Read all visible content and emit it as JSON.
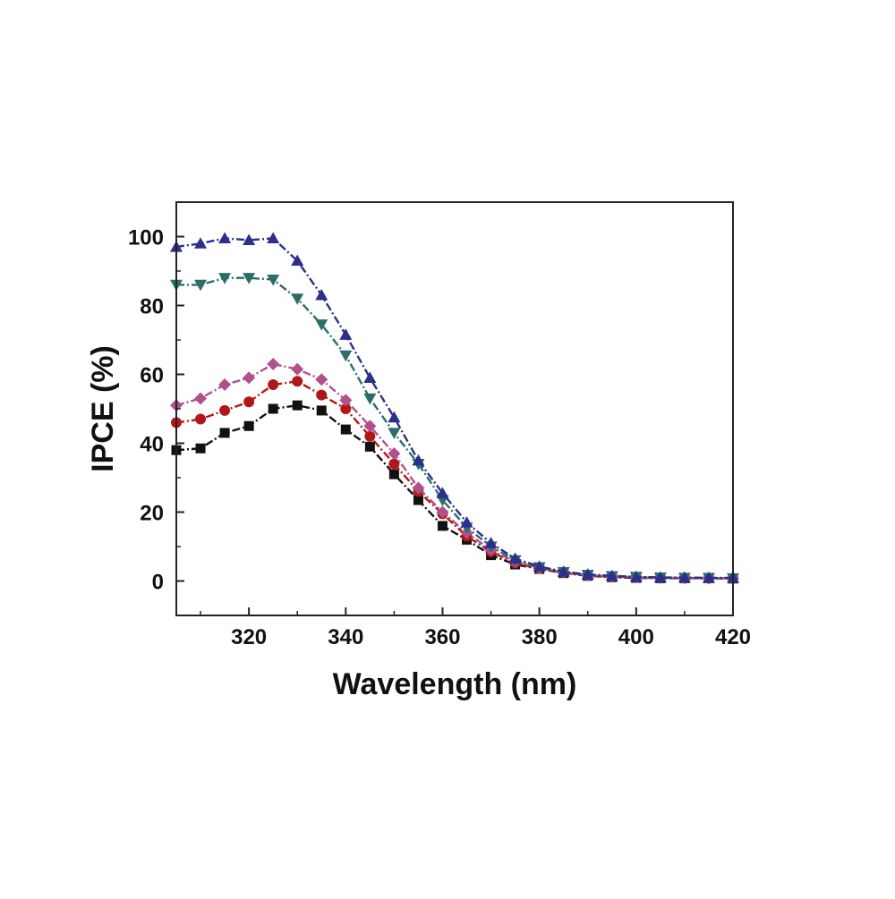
{
  "chart_data": {
    "type": "line",
    "title": "",
    "xlabel": "Wavelength (nm)",
    "ylabel": "IPCE (%)",
    "xlim": [
      305,
      420
    ],
    "ylim": [
      -10,
      110
    ],
    "xticks": [
      320,
      340,
      360,
      380,
      400,
      420
    ],
    "yticks": [
      0,
      20,
      40,
      60,
      80,
      100
    ],
    "xtick_labels": [
      "320",
      "340",
      "360",
      "380",
      "400",
      "420"
    ],
    "ytick_labels": [
      "0",
      "20",
      "40",
      "60",
      "80",
      "100"
    ],
    "grid": false,
    "legend": false,
    "x": [
      305,
      310,
      315,
      320,
      325,
      330,
      335,
      340,
      345,
      350,
      355,
      360,
      365,
      370,
      375,
      380,
      385,
      390,
      395,
      400,
      405,
      410,
      415,
      420
    ],
    "series": [
      {
        "marker": "square",
        "color": "#111111",
        "values": [
          38,
          38.5,
          43,
          45,
          50,
          51,
          49.5,
          44,
          39,
          31,
          23.5,
          16,
          12,
          7.5,
          4.8,
          3.5,
          2.3,
          1.5,
          1.1,
          0.9,
          0.8,
          0.8,
          0.8,
          0.7
        ]
      },
      {
        "marker": "circle",
        "color": "#b01818",
        "values": [
          46,
          47,
          49.5,
          52,
          57,
          58,
          54,
          50,
          42,
          34,
          26,
          19.5,
          13,
          8.5,
          5.2,
          3.6,
          2.4,
          1.6,
          1.2,
          1.0,
          0.9,
          0.8,
          0.8,
          0.8
        ]
      },
      {
        "marker": "diamond",
        "color": "#b0508c",
        "values": [
          51,
          53,
          57,
          59,
          63,
          61.5,
          58.5,
          52.5,
          45,
          37,
          27,
          20,
          14,
          9,
          5.6,
          3.8,
          2.5,
          1.7,
          1.3,
          1.1,
          0.9,
          0.9,
          0.8,
          0.8
        ]
      },
      {
        "marker": "triangle-down",
        "color": "#2a6e6a",
        "values": [
          86,
          86,
          88,
          88,
          87.5,
          82,
          74.5,
          65.5,
          53,
          43,
          34,
          23.5,
          15.5,
          10,
          6,
          4,
          2.6,
          1.8,
          1.4,
          1.2,
          1.0,
          0.9,
          0.9,
          0.8
        ]
      },
      {
        "marker": "triangle-up",
        "color": "#2c2f8c",
        "values": [
          97,
          98,
          99.5,
          99,
          99.5,
          93,
          83,
          71.5,
          59,
          47.5,
          35,
          25.5,
          17,
          11,
          6.5,
          4.2,
          2.7,
          1.9,
          1.5,
          1.2,
          1.0,
          1.0,
          0.9,
          0.9
        ]
      }
    ]
  }
}
